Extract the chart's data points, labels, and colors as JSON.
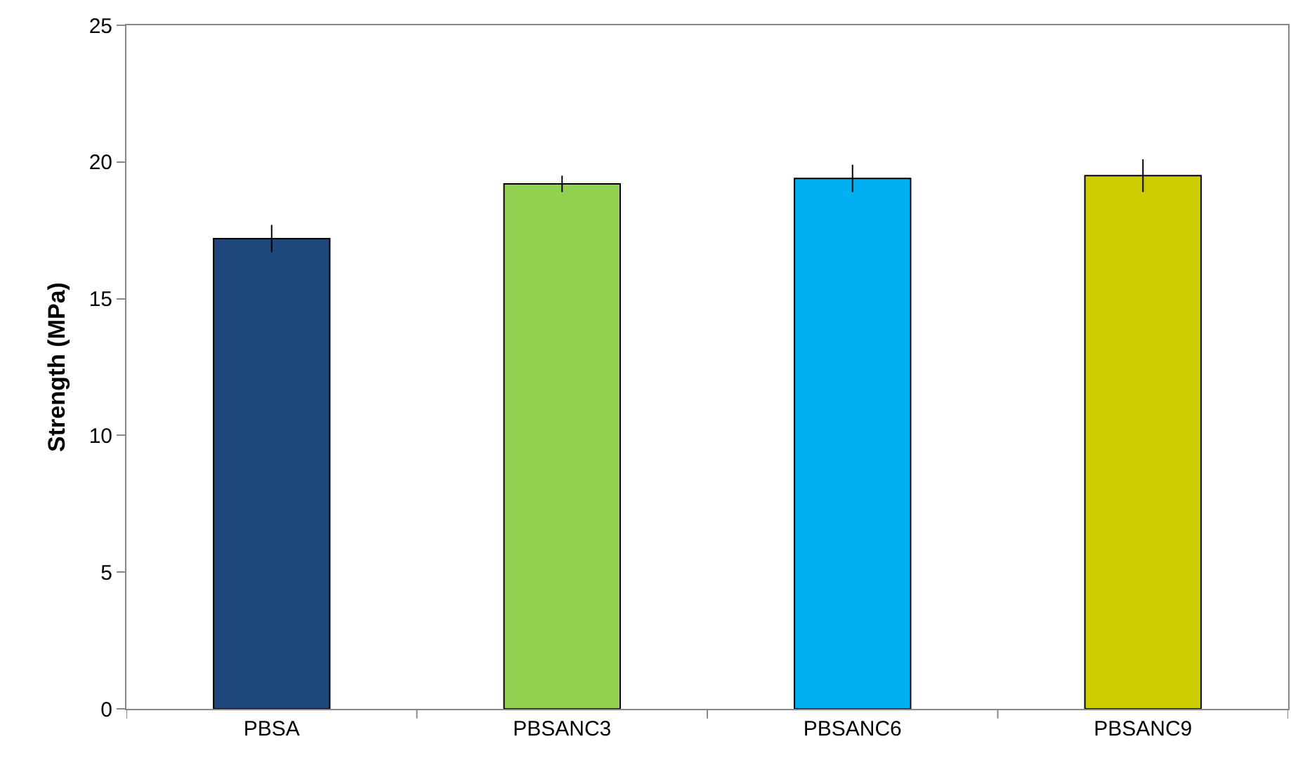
{
  "chart_data": {
    "type": "bar",
    "ylabel": "Strength (MPa)",
    "categories": [
      "PBSA",
      "PBSANC3",
      "PBSANC6",
      "PBSANC9"
    ],
    "values": [
      17.2,
      19.2,
      19.4,
      19.5
    ],
    "colors": [
      "#1f497d",
      "#92d050",
      "#00b0f0",
      "#cccc00"
    ],
    "errors": [
      0.5,
      0.3,
      0.5,
      0.6
    ],
    "ylim": [
      0,
      25
    ],
    "yticks": [
      0,
      5,
      10,
      15,
      20,
      25
    ],
    "grid": false
  }
}
